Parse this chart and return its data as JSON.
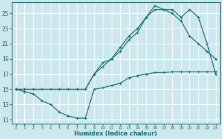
{
  "xlabel": "Humidex (Indice chaleur)",
  "bg_color": "#cce8ee",
  "grid_color": "#ffffff",
  "line_color": "#1a6b6b",
  "xlim": [
    -0.5,
    23.5
  ],
  "ylim": [
    10.5,
    26.5
  ],
  "xticks": [
    0,
    1,
    2,
    3,
    4,
    5,
    6,
    7,
    8,
    9,
    10,
    11,
    12,
    13,
    14,
    15,
    16,
    17,
    18,
    19,
    20,
    21,
    22,
    23
  ],
  "yticks": [
    11,
    13,
    15,
    17,
    19,
    21,
    23,
    25
  ],
  "line1_x": [
    0,
    1,
    2,
    3,
    4,
    5,
    6,
    7,
    8,
    9,
    10,
    11,
    12,
    13,
    14,
    15,
    16,
    17,
    18,
    19,
    20,
    21,
    22,
    23
  ],
  "line1_y": [
    15,
    14.7,
    14.4,
    13.5,
    13.0,
    12.0,
    11.5,
    11.2,
    11.2,
    15.0,
    15.2,
    15.5,
    15.8,
    16.5,
    16.8,
    17.0,
    17.2,
    17.2,
    17.3,
    17.3,
    17.3,
    17.3,
    17.3,
    17.3
  ],
  "line2_x": [
    0,
    1,
    2,
    3,
    4,
    5,
    6,
    7,
    8,
    9,
    10,
    11,
    12,
    13,
    14,
    15,
    16,
    17,
    18,
    19,
    20,
    21,
    22,
    23
  ],
  "line2_y": [
    15,
    15,
    15,
    15,
    15,
    15,
    15,
    15,
    15,
    17.0,
    18.0,
    19.0,
    20.0,
    21.5,
    22.5,
    24.5,
    25.5,
    25.5,
    25.5,
    24.5,
    25.5,
    24.5,
    21.0,
    17.0
  ],
  "line3_x": [
    0,
    1,
    2,
    3,
    4,
    5,
    6,
    7,
    8,
    9,
    10,
    11,
    12,
    13,
    14,
    15,
    16,
    17,
    18,
    19,
    20,
    21,
    22,
    23
  ],
  "line3_y": [
    15,
    15,
    15,
    15,
    15,
    15,
    15,
    15,
    15,
    17.0,
    18.5,
    19.0,
    20.5,
    22.0,
    23.0,
    24.5,
    26.0,
    25.5,
    25.0,
    24.0,
    22.0,
    21.0,
    20.0,
    19.0
  ]
}
